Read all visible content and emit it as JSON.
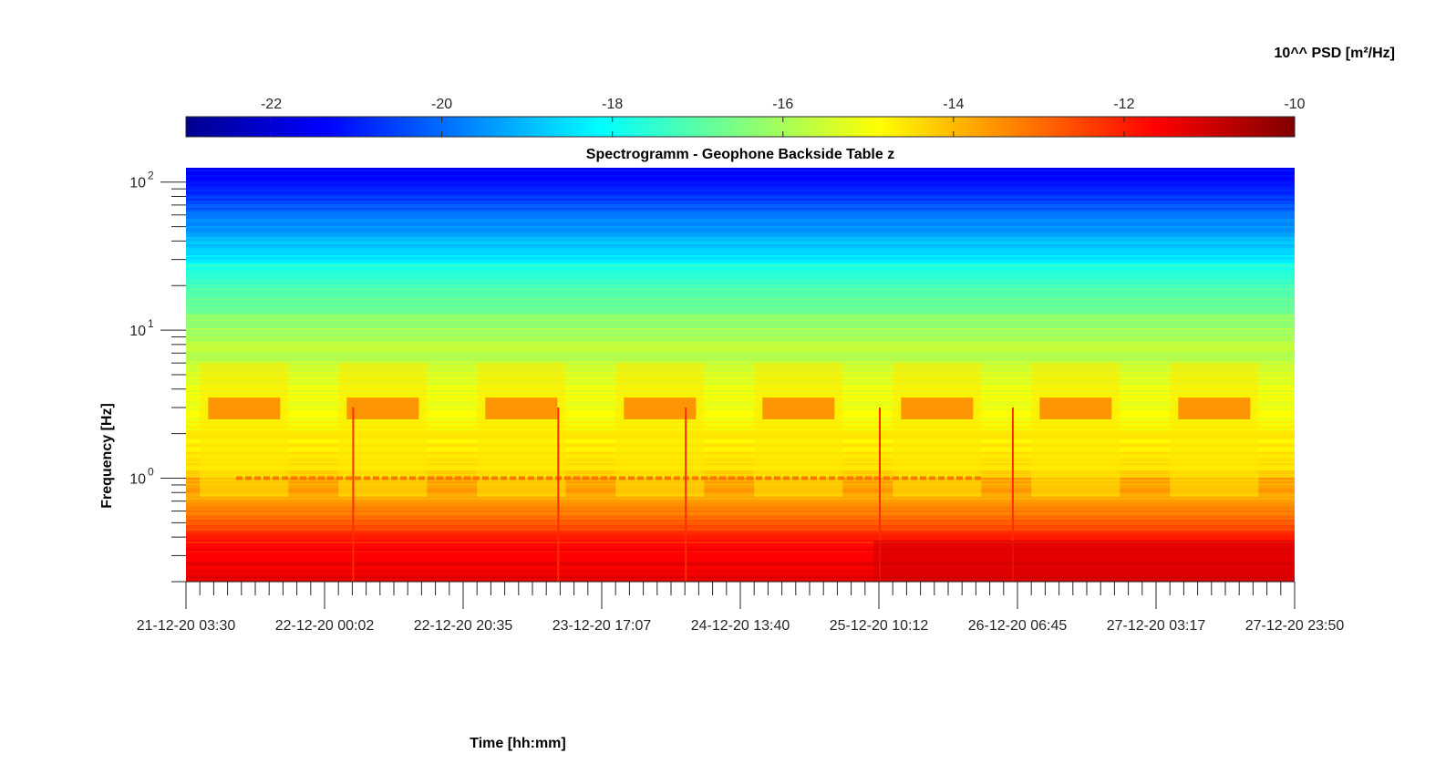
{
  "chart_data": {
    "type": "heatmap",
    "title": "Spectrogramm - Geophone Backside Table z",
    "xlabel": "Time [hh:mm]",
    "ylabel": "Frequency [Hz]",
    "x_ticks": [
      "21-12-20 03:30",
      "22-12-20 00:02",
      "22-12-20 20:35",
      "23-12-20 17:07",
      "24-12-20 13:40",
      "25-12-20 10:12",
      "26-12-20 06:45",
      "27-12-20 03:17",
      "27-12-20 23:50"
    ],
    "y_scale": "log",
    "y_ticks": [
      {
        "value": 1,
        "base": "10",
        "exp": "0"
      },
      {
        "value": 10,
        "base": "10",
        "exp": "1"
      },
      {
        "value": 100,
        "base": "10",
        "exp": "2"
      }
    ],
    "ylim": [
      0.2,
      125
    ],
    "colorbar": {
      "label": "10^^ PSD [m²/Hz]",
      "range": [
        -23,
        -10
      ],
      "ticks": [
        "-22",
        "-20",
        "-18",
        "-16",
        "-14",
        "-12",
        "-10"
      ],
      "colormap": "jet",
      "position": "top"
    },
    "features": {
      "daily_bursts_hz": [
        2.5,
        3.5
      ],
      "line_at_hz": 1.0,
      "low_freq_band_hz": [
        0.2,
        0.7
      ],
      "high_freq_band_hz": [
        30,
        125
      ]
    }
  }
}
